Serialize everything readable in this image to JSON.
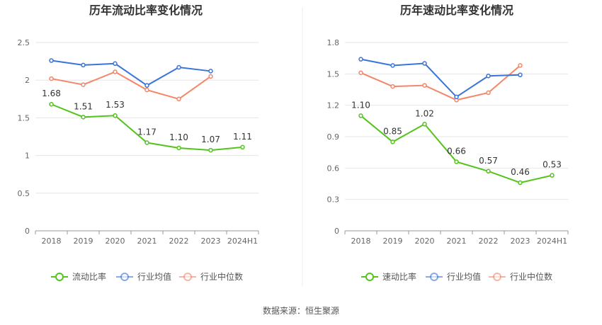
{
  "source_text": "数据来源：恒生聚源",
  "chart_data": [
    {
      "type": "line",
      "title": "历年流动比率变化情况",
      "categories": [
        "2018",
        "2019",
        "2020",
        "2021",
        "2022",
        "2023",
        "2024H1"
      ],
      "yticks": [
        "0",
        "0.5",
        "1",
        "1.5",
        "2",
        "2.5"
      ],
      "ylim": [
        0,
        2.5
      ],
      "grid": true,
      "legend_position": "bottom-center",
      "series": [
        {
          "name": "流动比率",
          "color": "#52c41a",
          "values": [
            1.68,
            1.51,
            1.53,
            1.17,
            1.1,
            1.07,
            1.11
          ],
          "labels": [
            "1.68",
            "1.51",
            "1.53",
            "1.17",
            "1.10",
            "1.07",
            "1.11"
          ]
        },
        {
          "name": "行业均值",
          "color": "#3a74d9",
          "values": [
            2.26,
            2.2,
            2.22,
            1.93,
            2.17,
            2.12,
            null
          ]
        },
        {
          "name": "行业中位数",
          "color": "#f3876a",
          "values": [
            2.02,
            1.94,
            2.11,
            1.87,
            1.75,
            2.05,
            null
          ]
        }
      ]
    },
    {
      "type": "line",
      "title": "历年速动比率变化情况",
      "categories": [
        "2018",
        "2019",
        "2020",
        "2021",
        "2022",
        "2023",
        "2024H1"
      ],
      "yticks": [
        "0",
        "0.3",
        "0.6",
        "0.9",
        "1.2",
        "1.5",
        "1.8"
      ],
      "ylim": [
        0,
        1.8
      ],
      "grid": true,
      "legend_position": "bottom-center",
      "series": [
        {
          "name": "速动比率",
          "color": "#52c41a",
          "values": [
            1.1,
            0.85,
            1.02,
            0.66,
            0.57,
            0.46,
            0.53
          ],
          "labels": [
            "1.10",
            "0.85",
            "1.02",
            "0.66",
            "0.57",
            "0.46",
            "0.53"
          ]
        },
        {
          "name": "行业均值",
          "color": "#3a74d9",
          "values": [
            1.64,
            1.58,
            1.6,
            1.28,
            1.48,
            1.49,
            null
          ]
        },
        {
          "name": "行业中位数",
          "color": "#f3876a",
          "values": [
            1.51,
            1.38,
            1.39,
            1.25,
            1.32,
            1.58,
            null
          ]
        }
      ]
    }
  ]
}
